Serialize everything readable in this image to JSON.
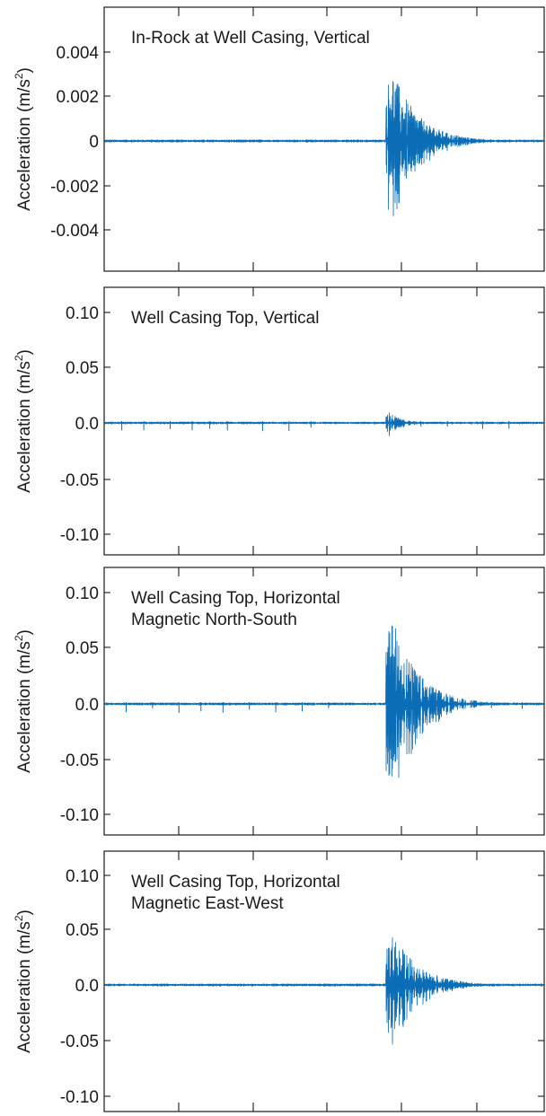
{
  "chart_data": [
    {
      "type": "line",
      "title": "In-Rock at Well Casing, Vertical",
      "title_lines": [
        "In-Rock at Well Casing, Vertical"
      ],
      "ylabel": "Acceleration (m/s",
      "ylabel_sup": "2",
      "ylabel_close": ")",
      "ylim": [
        -0.0059,
        0.0061
      ],
      "yticks": [
        0.004,
        0.002,
        0,
        -0.002,
        -0.004
      ],
      "ytick_labels": [
        "0.004",
        "0.002",
        "0",
        "-0.002",
        "-0.004"
      ],
      "xticks": [
        1,
        2,
        3,
        4,
        5
      ],
      "series_color": "#0a6db5",
      "signal": {
        "event_time": 0.64,
        "event_end": 1.0,
        "peak_positive": 0.0042,
        "peak_negative": -0.005,
        "decay_ratio": 0.1,
        "background_noise": 4e-05,
        "background_spikes": []
      }
    },
    {
      "type": "line",
      "title": "Well Casing Top, Vertical",
      "title_lines": [
        "Well Casing Top, Vertical"
      ],
      "ylabel": "Acceleration (m/s",
      "ylabel_sup": "2",
      "ylabel_close": ")",
      "ylim": [
        -0.12,
        0.12
      ],
      "yticks": [
        0.1,
        0.05,
        0.0,
        -0.05,
        -0.1
      ],
      "ytick_labels": [
        "0.10",
        "0.05",
        "0.0",
        "-0.05",
        "-0.10"
      ],
      "xticks": [
        1,
        2,
        3,
        4,
        5
      ],
      "series_color": "#0a6db5",
      "signal": {
        "event_time": 0.64,
        "event_end": 0.82,
        "peak_positive": 0.014,
        "peak_negative": -0.012,
        "decay_ratio": 0.1,
        "background_noise": 0.0007,
        "background_spikes": [
          0.04,
          0.09,
          0.15,
          0.2,
          0.24,
          0.28,
          0.36,
          0.42,
          0.47,
          0.72,
          0.78,
          0.86,
          0.92
        ]
      }
    },
    {
      "type": "line",
      "title": "Well Casing Top, Horizontal Magnetic North-South",
      "title_lines": [
        "Well Casing Top, Horizontal",
        "Magnetic North-South"
      ],
      "ylabel": "Acceleration (m/s",
      "ylabel_sup": "2",
      "ylabel_close": ")",
      "ylim": [
        -0.12,
        0.12
      ],
      "yticks": [
        0.1,
        0.05,
        0.0,
        -0.05,
        -0.1
      ],
      "ytick_labels": [
        "0.10",
        "0.05",
        "0.0",
        "-0.05",
        "-0.10"
      ],
      "xticks": [
        1,
        2,
        3,
        4,
        5
      ],
      "series_color": "#0a6db5",
      "signal": {
        "event_time": 0.64,
        "event_end": 1.0,
        "peak_positive": 0.1,
        "peak_negative": -0.08,
        "decay_ratio": 0.1,
        "background_noise": 0.0008,
        "background_spikes": [
          0.05,
          0.11,
          0.17,
          0.22,
          0.27,
          0.33,
          0.39,
          0.45,
          0.51,
          0.74,
          0.8,
          0.88,
          0.95
        ]
      }
    },
    {
      "type": "line",
      "title": "Well Casing Top, Horizontal Magnetic East-West",
      "title_lines": [
        "Well Casing Top, Horizontal",
        "Magnetic East-West"
      ],
      "ylabel": "Acceleration (m/s",
      "ylabel_sup": "2",
      "ylabel_close": ")",
      "ylim": [
        -0.12,
        0.12
      ],
      "yticks": [
        0.1,
        0.05,
        0.0,
        -0.05,
        -0.1
      ],
      "ytick_labels": [
        "0.10",
        "0.05",
        "0.0",
        "-0.05",
        "-0.10"
      ],
      "xticks": [
        1,
        2,
        3,
        4,
        5
      ],
      "series_color": "#0a6db5",
      "signal": {
        "event_time": 0.64,
        "event_end": 1.0,
        "peak_positive": 0.065,
        "peak_negative": -0.055,
        "decay_ratio": 0.1,
        "background_noise": 0.0008,
        "background_spikes": []
      }
    }
  ]
}
